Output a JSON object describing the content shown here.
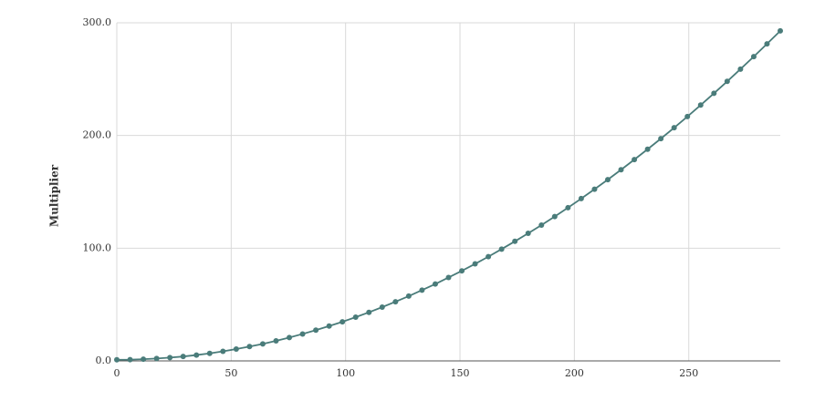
{
  "chart_data": {
    "type": "line",
    "y_label": "Multiplier",
    "x": [
      0,
      5.8,
      11.6,
      17.4,
      23.2,
      29,
      34.8,
      40.6,
      46.4,
      52.2,
      58,
      63.8,
      69.6,
      75.4,
      81.2,
      87,
      92.8,
      98.6,
      104.4,
      110.2,
      116,
      121.8,
      127.6,
      133.4,
      139.2,
      145,
      150.8,
      156.6,
      162.4,
      168.2,
      174,
      179.8,
      185.6,
      191.4,
      197.2,
      203,
      208.8,
      214.6,
      220.4,
      226.2,
      232,
      237.8,
      243.6,
      249.4,
      255.2,
      261,
      266.8,
      272.6,
      278.4,
      284.2,
      290
    ],
    "series": [
      {
        "color": "#4a7c7a",
        "values": [
          1.0,
          1.1,
          1.5,
          2.1,
          2.9,
          3.9,
          5.2,
          6.7,
          8.5,
          10.5,
          12.7,
          15.1,
          17.8,
          20.7,
          23.9,
          27.3,
          30.9,
          34.7,
          38.8,
          43.1,
          47.7,
          52.5,
          57.5,
          62.8,
          68.2,
          74.0,
          79.9,
          86.1,
          92.5,
          99.2,
          106.1,
          113.2,
          120.5,
          128.1,
          135.9,
          144.0,
          152.3,
          160.8,
          169.6,
          178.6,
          187.8,
          197.2,
          206.9,
          216.8,
          227.0,
          237.4,
          248.0,
          258.9,
          270.0,
          281.3,
          292.8
        ]
      }
    ],
    "xlim": [
      0,
      290
    ],
    "xticks": [
      0,
      50,
      100,
      150,
      200,
      250
    ],
    "ylim": [
      0,
      300
    ],
    "yticks": [
      {
        "value": 0,
        "label": "0.0"
      },
      {
        "value": 100,
        "label": "100.0"
      },
      {
        "value": 200,
        "label": "200.0"
      },
      {
        "value": 300,
        "label": "300.0"
      }
    ],
    "grid": true
  }
}
